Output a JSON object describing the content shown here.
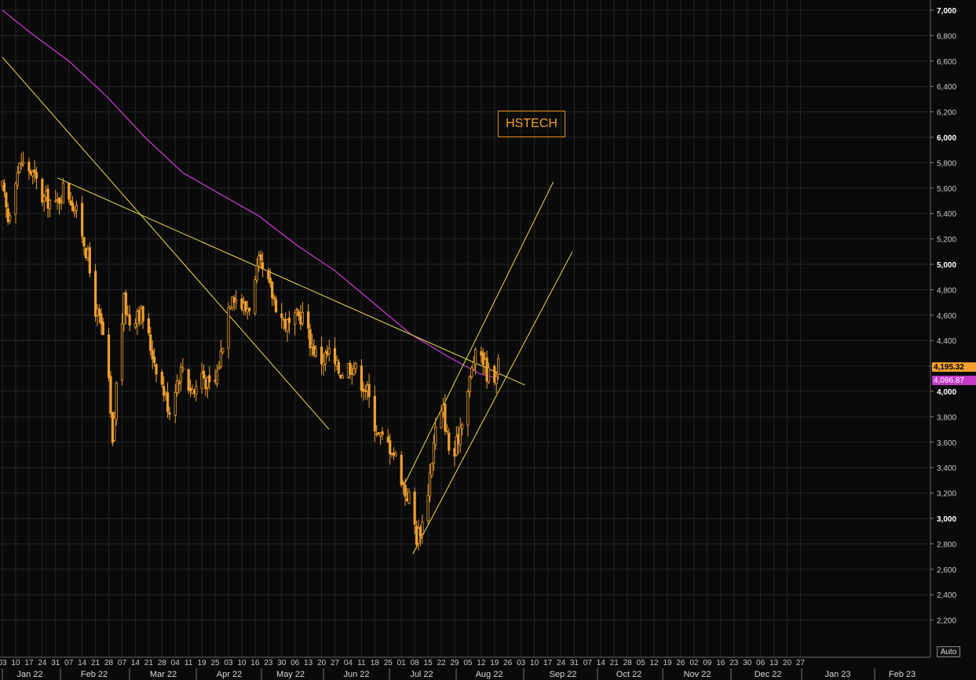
{
  "title": "HSTECH",
  "auto_label": "Auto",
  "last_price_label": "4,195.32",
  "ma_price_label": "4,096.87",
  "colors": {
    "background": "#0a0a0a",
    "candle": "#f0a030",
    "moving_average": "#c23ac8",
    "trendline": "#e8e04a",
    "grid": "#262626"
  },
  "chart_data": {
    "type": "candlestick",
    "title": "HSTECH",
    "y_axis_position": "right",
    "ylim": [
      2050,
      7050
    ],
    "y_ticks": [
      "7,000",
      "6,800",
      "6,600",
      "6,400",
      "6,200",
      "6,000",
      "5,800",
      "5,600",
      "5,400",
      "5,200",
      "5,000",
      "4,800",
      "4,600",
      "4,400",
      "4,200",
      "4,000",
      "3,800",
      "3,600",
      "3,400",
      "3,200",
      "3,000",
      "2,800",
      "2,600",
      "2,400",
      "2,200"
    ],
    "y_tick_values": [
      7000,
      6800,
      6600,
      6400,
      6200,
      6000,
      5800,
      5600,
      5400,
      5200,
      5000,
      4800,
      4600,
      4400,
      4200,
      4000,
      3800,
      3600,
      3400,
      3200,
      3000,
      2800,
      2600,
      2400,
      2200
    ],
    "x_day_ticks": [
      "03",
      "10",
      "17",
      "24",
      "31",
      "07",
      "14",
      "21",
      "28",
      "07",
      "14",
      "21",
      "28",
      "04",
      "11",
      "19",
      "25",
      "03",
      "10",
      "16",
      "23",
      "30",
      "06",
      "13",
      "20",
      "27",
      "04",
      "11",
      "18",
      "25",
      "01",
      "08",
      "15",
      "22",
      "29",
      "05",
      "12",
      "19",
      "26",
      "03",
      "10",
      "17",
      "24",
      "31",
      "07",
      "14",
      "21",
      "28",
      "05",
      "12",
      "19",
      "26",
      "02",
      "09",
      "16",
      "23",
      "30",
      "06",
      "13",
      "20",
      "27"
    ],
    "x_month_labels": [
      "Jan 22",
      "Feb 22",
      "Mar 22",
      "Apr 22",
      "May 22",
      "Jun 22",
      "Jul 22",
      "Aug 22",
      "Sep 22",
      "Oct 22",
      "Nov 22",
      "Dec 22",
      "Jan 23",
      "Feb 23"
    ],
    "grid": true,
    "series": [
      {
        "name": "",
        "kind": "candles",
        "close_path": [
          [
            0,
            5600
          ],
          [
            3,
            5350
          ],
          [
            7,
            5700
          ],
          [
            10,
            5800
          ],
          [
            14,
            5750
          ],
          [
            18,
            5650
          ],
          [
            21,
            5520
          ],
          [
            25,
            5500
          ],
          [
            28,
            5450
          ],
          [
            32,
            5600
          ],
          [
            35,
            5550
          ],
          [
            39,
            5400
          ],
          [
            42,
            5250
          ],
          [
            45,
            5050
          ],
          [
            48,
            4700
          ],
          [
            52,
            4500
          ],
          [
            55,
            4300
          ],
          [
            58,
            3550
          ],
          [
            61,
            4300
          ],
          [
            64,
            4700
          ],
          [
            68,
            4500
          ],
          [
            71,
            4650
          ],
          [
            75,
            4550
          ],
          [
            78,
            4350
          ],
          [
            81,
            4200
          ],
          [
            84,
            4050
          ],
          [
            88,
            3850
          ],
          [
            91,
            4050
          ],
          [
            95,
            4200
          ],
          [
            98,
            4050
          ],
          [
            101,
            4000
          ],
          [
            105,
            4150
          ],
          [
            108,
            4050
          ],
          [
            111,
            4000
          ],
          [
            115,
            4300
          ],
          [
            118,
            4600
          ],
          [
            121,
            4800
          ],
          [
            124,
            4700
          ],
          [
            128,
            4650
          ],
          [
            131,
            4700
          ],
          [
            135,
            5000
          ],
          [
            138,
            4900
          ],
          [
            141,
            4800
          ],
          [
            145,
            4650
          ],
          [
            148,
            4550
          ],
          [
            152,
            4500
          ],
          [
            155,
            4580
          ],
          [
            158,
            4600
          ],
          [
            162,
            4400
          ],
          [
            165,
            4300
          ],
          [
            168,
            4250
          ],
          [
            172,
            4300
          ],
          [
            175,
            4200
          ],
          [
            178,
            4150
          ],
          [
            182,
            4200
          ],
          [
            185,
            4200
          ],
          [
            188,
            4100
          ],
          [
            192,
            4000
          ],
          [
            195,
            3800
          ],
          [
            198,
            3650
          ],
          [
            202,
            3600
          ],
          [
            205,
            3550
          ],
          [
            208,
            3450
          ],
          [
            212,
            3200
          ],
          [
            215,
            3150
          ],
          [
            218,
            2850
          ],
          [
            222,
            3000
          ],
          [
            225,
            3350
          ],
          [
            228,
            3700
          ],
          [
            232,
            3850
          ],
          [
            235,
            3550
          ],
          [
            238,
            3500
          ],
          [
            242,
            3800
          ],
          [
            245,
            4000
          ],
          [
            248,
            4250
          ],
          [
            252,
            4300
          ],
          [
            255,
            4150
          ],
          [
            258,
            4100
          ],
          [
            261,
            4200
          ]
        ]
      },
      {
        "name": "",
        "kind": "moving_average",
        "points": [
          [
            0,
            7000
          ],
          [
            15,
            6820
          ],
          [
            35,
            6600
          ],
          [
            55,
            6320
          ],
          [
            75,
            6000
          ],
          [
            95,
            5720
          ],
          [
            115,
            5550
          ],
          [
            135,
            5380
          ],
          [
            155,
            5150
          ],
          [
            175,
            4950
          ],
          [
            195,
            4700
          ],
          [
            215,
            4450
          ],
          [
            235,
            4270
          ],
          [
            251,
            4140
          ],
          [
            261,
            4100
          ]
        ]
      }
    ],
    "trendlines": [
      {
        "from": [
          0,
          6630
        ],
        "to": [
          172,
          3700
        ]
      },
      {
        "from": [
          29,
          5680
        ],
        "to": [
          275,
          4050
        ]
      },
      {
        "from": [
          212,
          3280
        ],
        "to": [
          290,
          5650
        ]
      },
      {
        "from": [
          216,
          2720
        ],
        "to": [
          300,
          5100
        ]
      }
    ]
  }
}
